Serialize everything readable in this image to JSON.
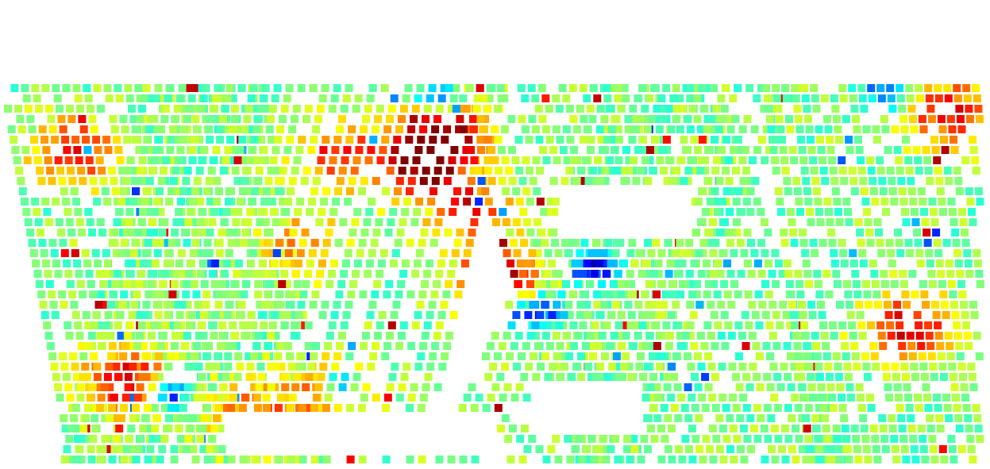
{
  "chart_data": {
    "type": "heatmap",
    "colormap": "jet",
    "colormap_stops": [
      "#00008f",
      "#0000ff",
      "#00a0ff",
      "#00ffff",
      "#7fff7f",
      "#ffff00",
      "#ff8000",
      "#ff0000",
      "#800000"
    ],
    "value_range": [
      0,
      1
    ],
    "background_color": "#ffffff",
    "title": "",
    "xlabel": "",
    "ylabel": "",
    "legend": "none",
    "grid": false,
    "mean_value": 0.5,
    "lows": [
      {
        "x": 0.44,
        "y": 0.03,
        "value": 0.05
      },
      {
        "x": 0.6,
        "y": 0.47,
        "value": 0.04
      },
      {
        "x": 0.34,
        "y": 0.78,
        "value": 0.06
      },
      {
        "x": 0.165,
        "y": 0.8,
        "value": 0.06
      },
      {
        "x": 0.52,
        "y": 0.6,
        "value": 0.12
      },
      {
        "x": 0.55,
        "y": 0.58,
        "value": 0.14
      },
      {
        "x": 0.9,
        "y": 0.02,
        "value": 0.2
      }
    ],
    "hot_spots": [
      {
        "x": 0.42,
        "y": 0.2,
        "value": 0.97
      },
      {
        "x": 0.45,
        "y": 0.12,
        "value": 0.95
      },
      {
        "x": 0.47,
        "y": 0.32,
        "value": 0.85
      },
      {
        "x": 0.5,
        "y": 0.5,
        "value": 0.95
      },
      {
        "x": 0.92,
        "y": 0.63,
        "value": 0.93
      },
      {
        "x": 0.07,
        "y": 0.17,
        "value": 0.88
      },
      {
        "x": 0.34,
        "y": 0.18,
        "value": 0.82
      },
      {
        "x": 0.3,
        "y": 0.41,
        "value": 0.72
      },
      {
        "x": 0.96,
        "y": 0.07,
        "value": 0.9
      },
      {
        "x": 0.25,
        "y": 0.86,
        "value": 0.8
      },
      {
        "x": 0.33,
        "y": 0.8,
        "value": 0.8
      },
      {
        "x": 0.12,
        "y": 0.77,
        "value": 0.92
      }
    ]
  }
}
